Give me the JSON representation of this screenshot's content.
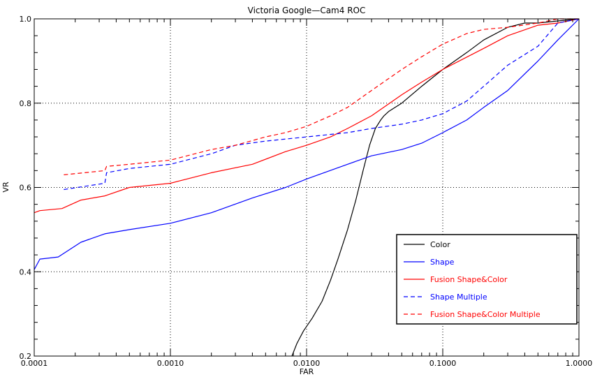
{
  "chart_data": {
    "type": "line",
    "title": "Victoria   Google—Cam4 ROC",
    "xlabel": "FAR",
    "ylabel": "VR",
    "xscale": "log",
    "xlim": [
      0.0001,
      1.0
    ],
    "ylim": [
      0.2,
      1.0
    ],
    "xticks": [
      0.0001,
      0.001,
      0.01,
      0.1,
      1.0
    ],
    "xtick_labels": [
      "0.0001",
      "0.0010",
      "0.0100",
      "0.1000",
      "1.0000"
    ],
    "yticks": [
      0.2,
      0.4,
      0.6,
      0.8,
      1.0
    ],
    "ytick_labels": [
      "0.2",
      "0.4",
      "0.6",
      "0.8",
      "1.0"
    ],
    "grid": "dotted at major ticks",
    "legend_position": "bottom-right",
    "series": [
      {
        "name": "Color",
        "color": "#000000",
        "dash": "solid",
        "points": [
          [
            0.0078,
            0.2
          ],
          [
            0.0085,
            0.23
          ],
          [
            0.0095,
            0.26
          ],
          [
            0.011,
            0.29
          ],
          [
            0.013,
            0.33
          ],
          [
            0.015,
            0.38
          ],
          [
            0.017,
            0.43
          ],
          [
            0.02,
            0.5
          ],
          [
            0.023,
            0.57
          ],
          [
            0.026,
            0.64
          ],
          [
            0.029,
            0.7
          ],
          [
            0.032,
            0.74
          ],
          [
            0.035,
            0.76
          ],
          [
            0.037,
            0.77
          ],
          [
            0.04,
            0.78
          ],
          [
            0.05,
            0.8
          ],
          [
            0.07,
            0.84
          ],
          [
            0.1,
            0.88
          ],
          [
            0.15,
            0.92
          ],
          [
            0.2,
            0.95
          ],
          [
            0.3,
            0.98
          ],
          [
            0.4,
            0.99
          ],
          [
            0.5,
            0.99
          ],
          [
            0.7,
            0.995
          ],
          [
            1.0,
            1.0
          ]
        ]
      },
      {
        "name": "Shape",
        "color": "#0000ff",
        "dash": "solid",
        "points": [
          [
            0.0001,
            0.405
          ],
          [
            0.00011,
            0.43
          ],
          [
            0.00015,
            0.435
          ],
          [
            0.00022,
            0.47
          ],
          [
            0.00033,
            0.49
          ],
          [
            0.0005,
            0.5
          ],
          [
            0.001,
            0.515
          ],
          [
            0.002,
            0.54
          ],
          [
            0.004,
            0.575
          ],
          [
            0.007,
            0.6
          ],
          [
            0.01,
            0.62
          ],
          [
            0.02,
            0.655
          ],
          [
            0.03,
            0.675
          ],
          [
            0.05,
            0.69
          ],
          [
            0.07,
            0.705
          ],
          [
            0.1,
            0.73
          ],
          [
            0.15,
            0.76
          ],
          [
            0.2,
            0.79
          ],
          [
            0.3,
            0.83
          ],
          [
            0.5,
            0.9
          ],
          [
            0.7,
            0.95
          ],
          [
            1.0,
            1.0
          ]
        ]
      },
      {
        "name": "Fusion Shape&Color",
        "color": "#ff0000",
        "dash": "solid",
        "points": [
          [
            0.0001,
            0.54
          ],
          [
            0.00011,
            0.545
          ],
          [
            0.00016,
            0.55
          ],
          [
            0.00022,
            0.57
          ],
          [
            0.00033,
            0.58
          ],
          [
            0.0005,
            0.6
          ],
          [
            0.001,
            0.61
          ],
          [
            0.002,
            0.635
          ],
          [
            0.004,
            0.655
          ],
          [
            0.007,
            0.685
          ],
          [
            0.01,
            0.7
          ],
          [
            0.015,
            0.72
          ],
          [
            0.02,
            0.74
          ],
          [
            0.03,
            0.77
          ],
          [
            0.05,
            0.82
          ],
          [
            0.07,
            0.85
          ],
          [
            0.1,
            0.88
          ],
          [
            0.2,
            0.93
          ],
          [
            0.3,
            0.96
          ],
          [
            0.5,
            0.985
          ],
          [
            0.7,
            0.99
          ],
          [
            1.0,
            1.0
          ]
        ]
      },
      {
        "name": "Shape Multiple",
        "color": "#0000ff",
        "dash": "dashed",
        "points": [
          [
            0.000165,
            0.595
          ],
          [
            0.00033,
            0.61
          ],
          [
            0.00034,
            0.635
          ],
          [
            0.0005,
            0.645
          ],
          [
            0.001,
            0.655
          ],
          [
            0.002,
            0.68
          ],
          [
            0.003,
            0.7
          ],
          [
            0.005,
            0.71
          ],
          [
            0.01,
            0.72
          ],
          [
            0.02,
            0.73
          ],
          [
            0.03,
            0.74
          ],
          [
            0.05,
            0.75
          ],
          [
            0.07,
            0.76
          ],
          [
            0.1,
            0.775
          ],
          [
            0.15,
            0.805
          ],
          [
            0.2,
            0.84
          ],
          [
            0.3,
            0.89
          ],
          [
            0.5,
            0.935
          ],
          [
            0.7,
            0.99
          ],
          [
            1.0,
            1.0
          ]
        ]
      },
      {
        "name": "Fusion Shape&Color Multiple",
        "color": "#ff0000",
        "dash": "dashed",
        "points": [
          [
            0.000165,
            0.63
          ],
          [
            0.00033,
            0.64
          ],
          [
            0.00034,
            0.65
          ],
          [
            0.0005,
            0.655
          ],
          [
            0.001,
            0.665
          ],
          [
            0.002,
            0.69
          ],
          [
            0.003,
            0.7
          ],
          [
            0.005,
            0.72
          ],
          [
            0.007,
            0.73
          ],
          [
            0.01,
            0.745
          ],
          [
            0.015,
            0.77
          ],
          [
            0.02,
            0.79
          ],
          [
            0.03,
            0.83
          ],
          [
            0.05,
            0.88
          ],
          [
            0.07,
            0.91
          ],
          [
            0.1,
            0.94
          ],
          [
            0.15,
            0.965
          ],
          [
            0.2,
            0.975
          ],
          [
            0.3,
            0.98
          ],
          [
            0.5,
            0.99
          ],
          [
            0.7,
            1.0
          ],
          [
            1.0,
            1.0
          ]
        ]
      }
    ]
  }
}
